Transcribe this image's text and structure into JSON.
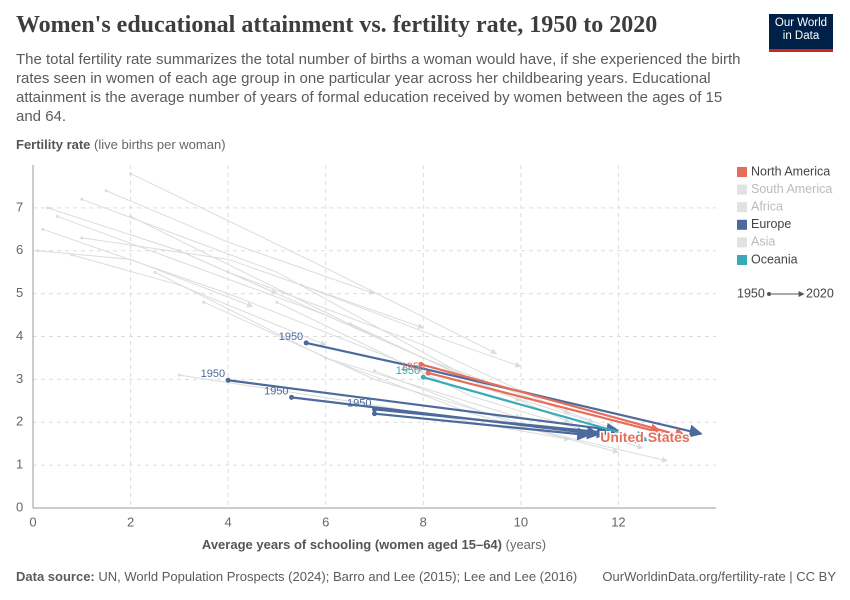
{
  "header": {
    "title": "Women's educational attainment vs. fertility rate, 1950 to 2020",
    "subtitle": "The total fertility rate summarizes the total number of births a woman would have, if she experienced the birth rates seen in women of each age group in one particular year across her childbearing years. Educational attainment is the average number of years of formal education received by women between the ages of 15 and 64.",
    "logo": "Our World in Data"
  },
  "chart_data": {
    "type": "connected-scatter",
    "y_label": "Fertility rate",
    "y_label_note": "(live births per woman)",
    "x_label": "Average years of schooling (women aged 15–64)",
    "x_label_note": "(years)",
    "xlim": [
      0,
      14
    ],
    "xticks": [
      0,
      2,
      4,
      6,
      8,
      10,
      12
    ],
    "ylim": [
      0,
      8
    ],
    "yticks": [
      0,
      1,
      2,
      3,
      4,
      5,
      6,
      7
    ],
    "grid": true,
    "legend": [
      {
        "name": "North America",
        "color": "#e56e5a",
        "active": true
      },
      {
        "name": "South America",
        "color": "#e2e2e2",
        "active": false
      },
      {
        "name": "Africa",
        "color": "#e2e2e2",
        "active": false
      },
      {
        "name": "Europe",
        "color": "#4c6a9c",
        "active": true
      },
      {
        "name": "Asia",
        "color": "#e2e2e2",
        "active": false
      },
      {
        "name": "Oceania",
        "color": "#38aaba",
        "active": true
      }
    ],
    "time_key": {
      "start": "1950",
      "end": "2020"
    },
    "series": [
      {
        "color": "#dcdcdc",
        "x": [
          0.5,
          6,
          10
        ],
        "y": [
          6.8,
          4.5,
          2.5
        ]
      },
      {
        "color": "#dcdcdc",
        "x": [
          1,
          5,
          9
        ],
        "y": [
          7.2,
          5.5,
          3
        ]
      },
      {
        "color": "#dcdcdc",
        "x": [
          0.2,
          4,
          8
        ],
        "y": [
          6.5,
          5,
          3.2
        ]
      },
      {
        "color": "#dcdcdc",
        "x": [
          2,
          7,
          11
        ],
        "y": [
          6.8,
          4,
          2
        ]
      },
      {
        "color": "#dcdcdc",
        "x": [
          0.8,
          3,
          6
        ],
        "y": [
          5.9,
          5.2,
          3.8
        ]
      },
      {
        "color": "#dcdcdc",
        "x": [
          3,
          8,
          12
        ],
        "y": [
          6,
          3.5,
          1.8
        ]
      },
      {
        "color": "#dcdcdc",
        "x": [
          1.5,
          4,
          7
        ],
        "y": [
          7.4,
          6.2,
          5
        ]
      },
      {
        "color": "#dcdcdc",
        "x": [
          0.3,
          3,
          5
        ],
        "y": [
          7,
          6,
          5
        ]
      },
      {
        "color": "#dcdcdc",
        "x": [
          4,
          8,
          11
        ],
        "y": [
          5.5,
          3.8,
          2.2
        ]
      },
      {
        "color": "#dcdcdc",
        "x": [
          2.5,
          6,
          10
        ],
        "y": [
          5.5,
          3.5,
          2.1
        ]
      },
      {
        "color": "#dcdcdc",
        "x": [
          5,
          9,
          12.5
        ],
        "y": [
          4.8,
          2.6,
          1.4
        ]
      },
      {
        "color": "#dcdcdc",
        "x": [
          6,
          9,
          12
        ],
        "y": [
          3.5,
          2.2,
          1.3
        ]
      },
      {
        "color": "#dcdcdc",
        "x": [
          3.5,
          7,
          10.5
        ],
        "y": [
          4.8,
          3,
          1.8
        ]
      },
      {
        "color": "#dcdcdc",
        "x": [
          1,
          4,
          8
        ],
        "y": [
          6.3,
          5.8,
          4.2
        ]
      },
      {
        "color": "#dcdcdc",
        "x": [
          2,
          6,
          9.5
        ],
        "y": [
          7.8,
          5.6,
          3.6
        ]
      },
      {
        "color": "#dcdcdc",
        "x": [
          5.5,
          8.5,
          10
        ],
        "y": [
          5.2,
          3.9,
          3.3
        ]
      },
      {
        "color": "#dcdcdc",
        "x": [
          7,
          10,
          13
        ],
        "y": [
          3.2,
          1.9,
          1.1
        ]
      },
      {
        "color": "#dcdcdc",
        "x": [
          3,
          7,
          11
        ],
        "y": [
          3.1,
          2.4,
          1.6
        ]
      },
      {
        "color": "#dcdcdc",
        "x": [
          0.1,
          2,
          4.5
        ],
        "y": [
          6,
          5.8,
          4.7
        ]
      },
      {
        "color": "#dcdcdc",
        "x": [
          6.5,
          9.5,
          11.5
        ],
        "y": [
          4.3,
          2.7,
          2
        ]
      },
      {
        "color": "#4c6a9c",
        "start_label": "1950",
        "x": [
          5.6,
          8,
          13.7
        ],
        "y": [
          3.85,
          3.25,
          1.73
        ]
      },
      {
        "color": "#4c6a9c",
        "start_label": "1950",
        "x": [
          4,
          12
        ],
        "y": [
          2.98,
          1.8
        ]
      },
      {
        "color": "#4c6a9c",
        "start_label": "1950",
        "x": [
          5.3,
          11.6
        ],
        "y": [
          2.58,
          1.72
        ]
      },
      {
        "color": "#4c6a9c",
        "start_label": "1950",
        "x": [
          7,
          11.8
        ],
        "y": [
          2.3,
          1.75
        ]
      },
      {
        "color": "#4c6a9c",
        "x": [
          7,
          11.4
        ],
        "y": [
          2.2,
          1.7
        ]
      },
      {
        "color": "#38aaba",
        "start_label": "1950",
        "x": [
          8,
          12.6
        ],
        "y": [
          3.05,
          1.58
        ]
      },
      {
        "color": "#e56e5a",
        "start_label": "1950",
        "x": [
          8.1,
          12.9
        ],
        "y": [
          3.15,
          1.75
        ]
      },
      {
        "color": "#e56e5a",
        "end_label": "United States",
        "x": [
          7.95,
          13.4
        ],
        "y": [
          3.35,
          1.65
        ]
      }
    ]
  },
  "footer": {
    "source_label": "Data source:",
    "source": "UN, World Population Prospects (2024); Barro and Lee (2015); Lee and Lee (2016)",
    "url": "OurWorldinData.org/fertility-rate | CC BY"
  }
}
